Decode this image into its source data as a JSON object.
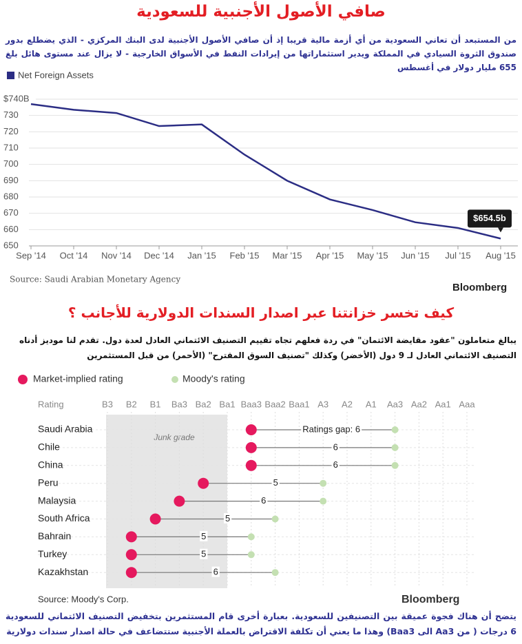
{
  "chart_data": [
    {
      "type": "line",
      "title": "صافي الأصول الأجنبية للسعودية",
      "subtitle": "من المستبعد أن تعاني السعودية من أي أزمة مالية قريبا إذ أن صافي الأصول الأجنبية لدى البنك المركزي - الذي يضطلع بدور صندوق الثروة السيادي في المملكة ويدير استثماراتها من إيرادات النفط في الأسواق الخارجية - لا يزال عند مستوى هائل بلغ 655 مليار دولار في أغسطس",
      "categories": [
        "Sep '14",
        "Oct '14",
        "Nov '14",
        "Dec '14",
        "Jan '15",
        "Feb '15",
        "Mar '15",
        "Apr '15",
        "May '15",
        "Jun '15",
        "Jul '15",
        "Aug '15"
      ],
      "series": [
        {
          "name": "Net Foreign Assets",
          "color": "#2b2d84",
          "values": [
            737,
            733.5,
            731.5,
            723.5,
            724.5,
            706,
            690,
            678.5,
            672,
            664.5,
            661,
            654.5
          ],
          "value_labels": [
            null,
            null,
            null,
            null,
            null,
            null,
            null,
            null,
            null,
            null,
            null,
            "$654.5b"
          ]
        }
      ],
      "ylim": [
        650,
        740
      ],
      "yticks": [
        650,
        660,
        670,
        680,
        690,
        700,
        710,
        720,
        730,
        {
          "value": 740,
          "label": "$740B"
        }
      ],
      "grid": true,
      "source": "Source: Saudi Arabian Monetary Agency",
      "brand": "Bloomberg"
    },
    {
      "type": "dot",
      "title": "كيف تخسر خزانتنا عبر اصدار السندات الدولارية للأجانب ؟",
      "subtitle": "يبالغ متعاملون \"عقود مقايضة الائتمان\" في ردة فعلهم تجاه تقييم التصنيف الائتماني العادل لعدة دول. تقدم لنا موديز أدناه التصنيف الائتماني العادل لـ 9 دول (الأخضر) وكذلك \"تصنيف السوق المقترح\" (الأحمر) من قبل المستثمرين",
      "xlabel": "Rating",
      "ratings": [
        "B3",
        "B2",
        "B1",
        "Ba3",
        "Ba2",
        "Ba1",
        "Baa3",
        "Baa2",
        "Baa1",
        "A3",
        "A2",
        "A1",
        "Aa3",
        "Aa2",
        "Aa1",
        "Aaa"
      ],
      "categories": [
        "Saudi Arabia",
        "Chile",
        "China",
        "Peru",
        "Malaysia",
        "South Africa",
        "Bahrain",
        "Turkey",
        "Kazakhstan"
      ],
      "series": [
        {
          "name": "Market-implied rating",
          "color": "#e5195e",
          "values": [
            "Baa3",
            "Baa3",
            "Baa3",
            "Ba2",
            "Ba3",
            "B1",
            "B2",
            "B2",
            "B2"
          ]
        },
        {
          "name": "Moody's rating",
          "color": "#c4e0b2",
          "values": [
            "Aa3",
            "Aa3",
            "Aa3",
            "A3",
            "A3",
            "Baa2",
            "Baa3",
            "Baa3",
            "Baa2"
          ]
        }
      ],
      "gaps": [
        6,
        6,
        6,
        5,
        6,
        5,
        5,
        5,
        6
      ],
      "gap_labels": [
        "Ratings gap: 6",
        null,
        null,
        null,
        null,
        null,
        null,
        null,
        null
      ],
      "shade_label": "Junk grade",
      "shade_range": [
        "B3",
        "Ba1"
      ],
      "source": "Source: Moody's Corp.",
      "brand": "Bloomberg",
      "note": "يتضح أن هناك فجوة عميقة بين التصنيفين للسعودية. بعبارة أخرى قام المستثمرين بتخفيض التصنيف الائتماني للسعودية 6 درجات ( من Aa3 الى Baa3) وهذا ما يعني أن تكلفة الاقتراض بالعملة الأجنبية ستتضاعف في حالة اصدار سندات دولارية"
    }
  ]
}
